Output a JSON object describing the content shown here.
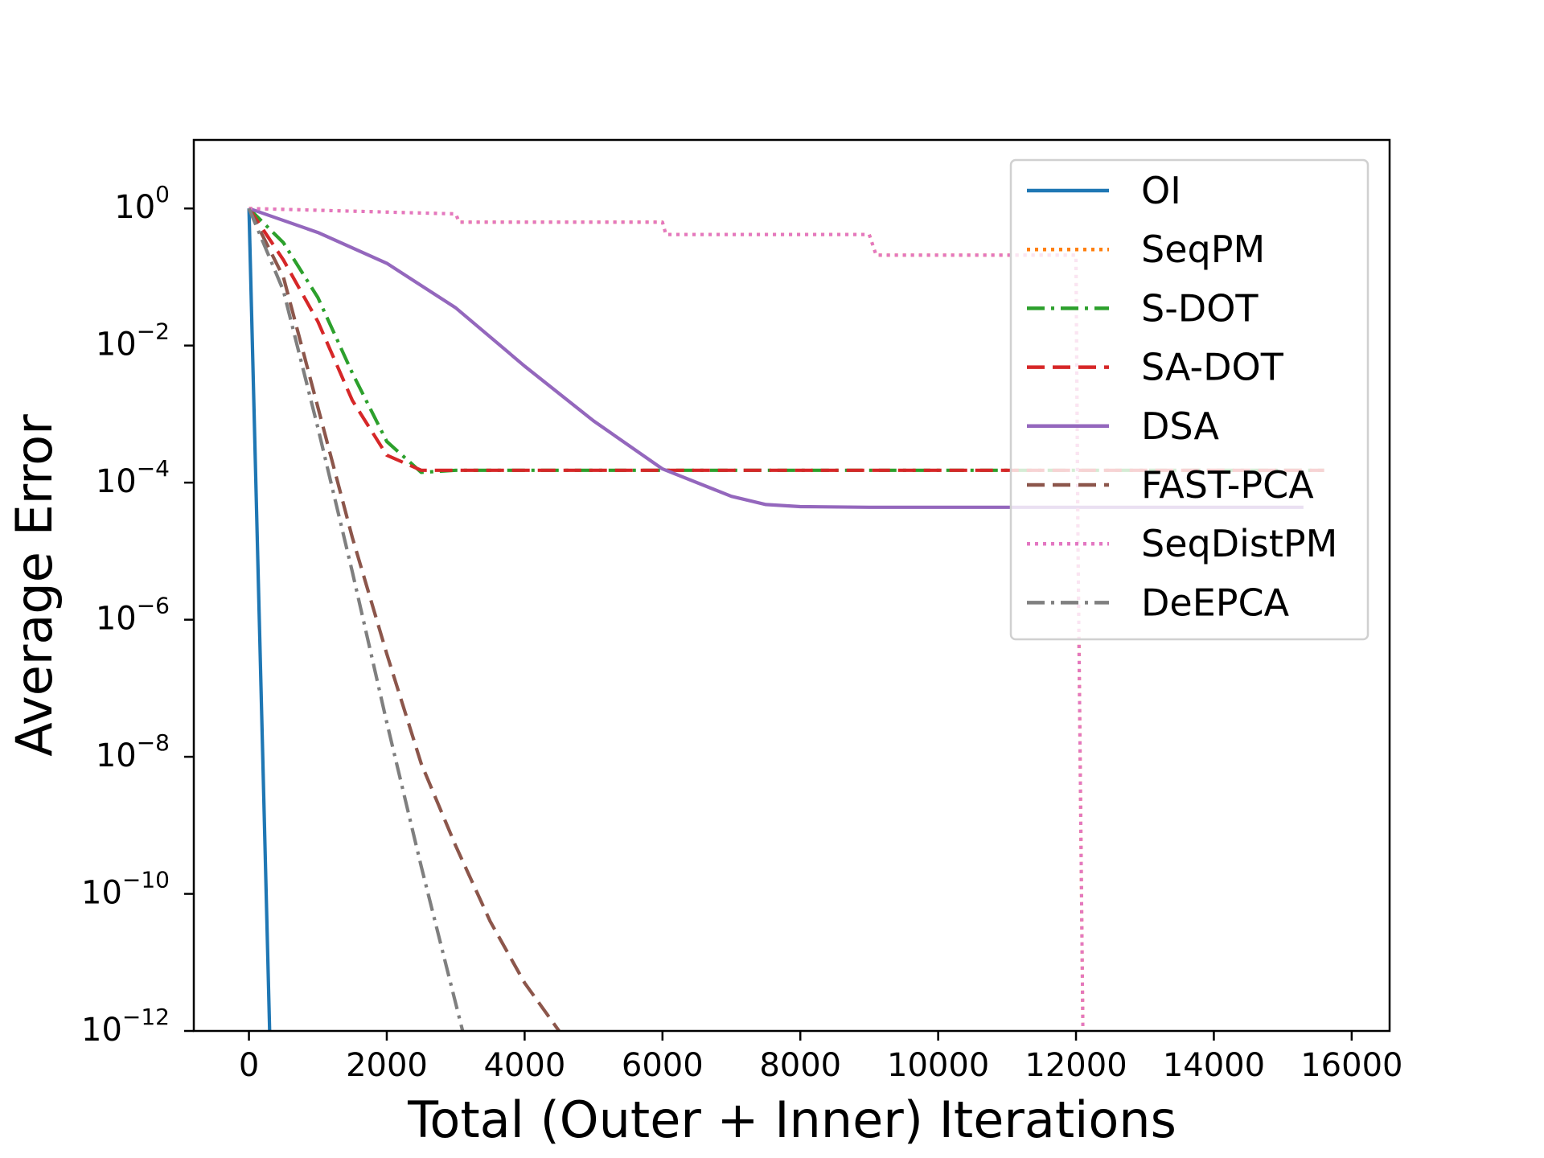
{
  "chart_data": {
    "type": "line",
    "title": "",
    "xlabel": "Total (Outer + Inner) Iterations",
    "ylabel": "Average Error",
    "xlim": [
      -800,
      16550
    ],
    "ylim_log10": [
      -12,
      1
    ],
    "yscale": "log",
    "grid": false,
    "legend_position": "top-right",
    "x_ticks": [
      0,
      2000,
      4000,
      6000,
      8000,
      10000,
      12000,
      14000,
      16000
    ],
    "x_tick_labels": [
      "0",
      "2000",
      "4000",
      "6000",
      "8000",
      "10000",
      "12000",
      "14000",
      "16000"
    ],
    "y_ticks": [
      {
        "base": "10",
        "exp": "0",
        "value": 0
      },
      {
        "base": "10",
        "exp": "−2",
        "value": -2
      },
      {
        "base": "10",
        "exp": "−4",
        "value": -4
      },
      {
        "base": "10",
        "exp": "−6",
        "value": -6
      },
      {
        "base": "10",
        "exp": "−8",
        "value": -8
      },
      {
        "base": "10",
        "exp": "−10",
        "value": -10
      },
      {
        "base": "10",
        "exp": "−12",
        "value": -12
      }
    ],
    "series": [
      {
        "name": "OI",
        "color": "#1f77b4",
        "style": "solid",
        "x": [
          0,
          300
        ],
        "log10_y": [
          0,
          -12
        ]
      },
      {
        "name": "SeqPM",
        "color": "#ff7f0e",
        "style": "dotted",
        "x": [
          0,
          3000,
          3050,
          6000,
          6050,
          9000,
          9100,
          12000,
          12030,
          12100
        ],
        "log10_y": [
          0,
          -0.08,
          -0.2,
          -0.2,
          -0.38,
          -0.38,
          -0.68,
          -0.68,
          -5.0,
          -12
        ]
      },
      {
        "name": "S-DOT",
        "color": "#2ca02c",
        "style": "dashdot",
        "x": [
          0,
          500,
          1000,
          1500,
          2000,
          2500,
          3000,
          4000,
          6000,
          8000,
          10000,
          12000,
          14000,
          15600
        ],
        "log10_y": [
          0,
          -0.5,
          -1.3,
          -2.4,
          -3.4,
          -3.85,
          -3.82,
          -3.82,
          -3.82,
          -3.82,
          -3.82,
          -3.82,
          -3.82,
          -3.82
        ]
      },
      {
        "name": "SA-DOT",
        "color": "#d62728",
        "style": "dashed",
        "x": [
          0,
          500,
          1000,
          1500,
          2000,
          2500,
          3000,
          4000,
          6000,
          8000,
          10000,
          12000,
          14000,
          15600
        ],
        "log10_y": [
          0,
          -0.75,
          -1.65,
          -2.8,
          -3.6,
          -3.82,
          -3.82,
          -3.82,
          -3.82,
          -3.82,
          -3.82,
          -3.82,
          -3.82,
          -3.82
        ]
      },
      {
        "name": "DSA",
        "color": "#9467bd",
        "style": "solid",
        "x": [
          0,
          1000,
          2000,
          3000,
          4000,
          5000,
          6000,
          7000,
          7500,
          8000,
          9000,
          10000,
          12000,
          14000,
          15300
        ],
        "log10_y": [
          0,
          -0.35,
          -0.8,
          -1.45,
          -2.3,
          -3.1,
          -3.8,
          -4.2,
          -4.32,
          -4.35,
          -4.36,
          -4.36,
          -4.36,
          -4.36,
          -4.36
        ]
      },
      {
        "name": "FAST-PCA",
        "color": "#8c564b",
        "style": "dashed",
        "x": [
          0,
          500,
          1000,
          1500,
          2000,
          2500,
          3000,
          3500,
          4000,
          4500
        ],
        "log10_y": [
          0,
          -1.0,
          -2.9,
          -4.8,
          -6.5,
          -8.1,
          -9.3,
          -10.4,
          -11.3,
          -12
        ]
      },
      {
        "name": "SeqDistPM",
        "color": "#e377c2",
        "style": "dotted",
        "x": [
          0,
          3000,
          3050,
          6000,
          6050,
          9000,
          9100,
          12000,
          12030,
          12100
        ],
        "log10_y": [
          0,
          -0.08,
          -0.2,
          -0.2,
          -0.38,
          -0.38,
          -0.68,
          -0.68,
          -5.0,
          -12
        ]
      },
      {
        "name": "DeEPCA",
        "color": "#7f7f7f",
        "style": "dashdot",
        "x": [
          0,
          500,
          1000,
          1500,
          2000,
          2500,
          3000,
          3100
        ],
        "log10_y": [
          0,
          -1.2,
          -3.2,
          -5.3,
          -7.5,
          -9.6,
          -11.6,
          -12
        ]
      }
    ]
  }
}
